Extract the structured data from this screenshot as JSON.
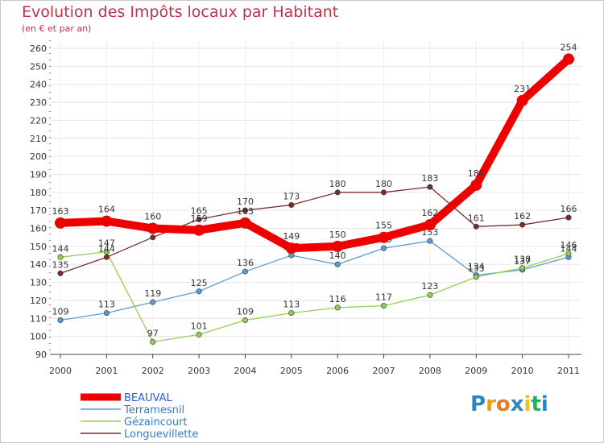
{
  "title": "Evolution des Impôts locaux par Habitant",
  "subtitle": "(en € et par an)",
  "logo": {
    "text": "Proxiti",
    "letters": [
      "P",
      "r",
      "o",
      "x",
      "i",
      "t",
      "i"
    ],
    "colors": [
      "#2e86c1",
      "#f39c12",
      "#e67e22",
      "#2e86c1",
      "#f1c40f",
      "#27ae60",
      "#2e86c1"
    ]
  },
  "chart_data": {
    "type": "line",
    "title": "Evolution des Impôts locaux par Habitant",
    "subtitle": "(en € et par an)",
    "xlabel": "",
    "ylabel": "",
    "categories": [
      "2000",
      "2001",
      "2002",
      "2003",
      "2004",
      "2005",
      "2006",
      "2007",
      "2008",
      "2009",
      "2010",
      "2011"
    ],
    "ylim": [
      90,
      260
    ],
    "yticks": [
      90,
      100,
      110,
      120,
      130,
      140,
      150,
      160,
      170,
      180,
      190,
      200,
      210,
      220,
      230,
      240,
      250,
      260
    ],
    "grid": true,
    "legend_position": "bottom-left",
    "series": [
      {
        "name": "BEAUVAL",
        "color": "#ee0000",
        "emphasis": true,
        "values": [
          163,
          164,
          160,
          159,
          163,
          149,
          150,
          155,
          162,
          184,
          231,
          254
        ],
        "labels": [
          "163",
          "164",
          "160",
          "159",
          "163",
          "149",
          "150",
          "155",
          "162",
          "184",
          "231",
          "254"
        ]
      },
      {
        "name": "Terramesnil",
        "color": "#5b9bd5",
        "emphasis": false,
        "values": [
          109,
          113,
          119,
          125,
          136,
          145,
          140,
          149,
          153,
          134,
          137,
          144
        ],
        "labels": [
          "109",
          "113",
          "119",
          "125",
          "136",
          "145",
          "140",
          "149",
          "153",
          "134",
          "137",
          "144"
        ]
      },
      {
        "name": "Gézaincourt",
        "color": "#92d050",
        "emphasis": false,
        "values": [
          144,
          147,
          97,
          101,
          109,
          113,
          116,
          117,
          123,
          133,
          138,
          146
        ],
        "labels": [
          "144",
          "147",
          "97",
          "101",
          "109",
          "113",
          "116",
          "117",
          "123",
          "133",
          "138",
          "146"
        ]
      },
      {
        "name": "Longuevillette",
        "color": "#7b2c2c",
        "emphasis": false,
        "values": [
          135,
          144,
          155,
          165,
          170,
          173,
          180,
          180,
          183,
          161,
          162,
          166
        ],
        "labels": [
          "135",
          "144",
          "155",
          "165",
          "170",
          "173",
          "180",
          "180",
          "183",
          "161",
          "162",
          "166"
        ]
      }
    ]
  }
}
